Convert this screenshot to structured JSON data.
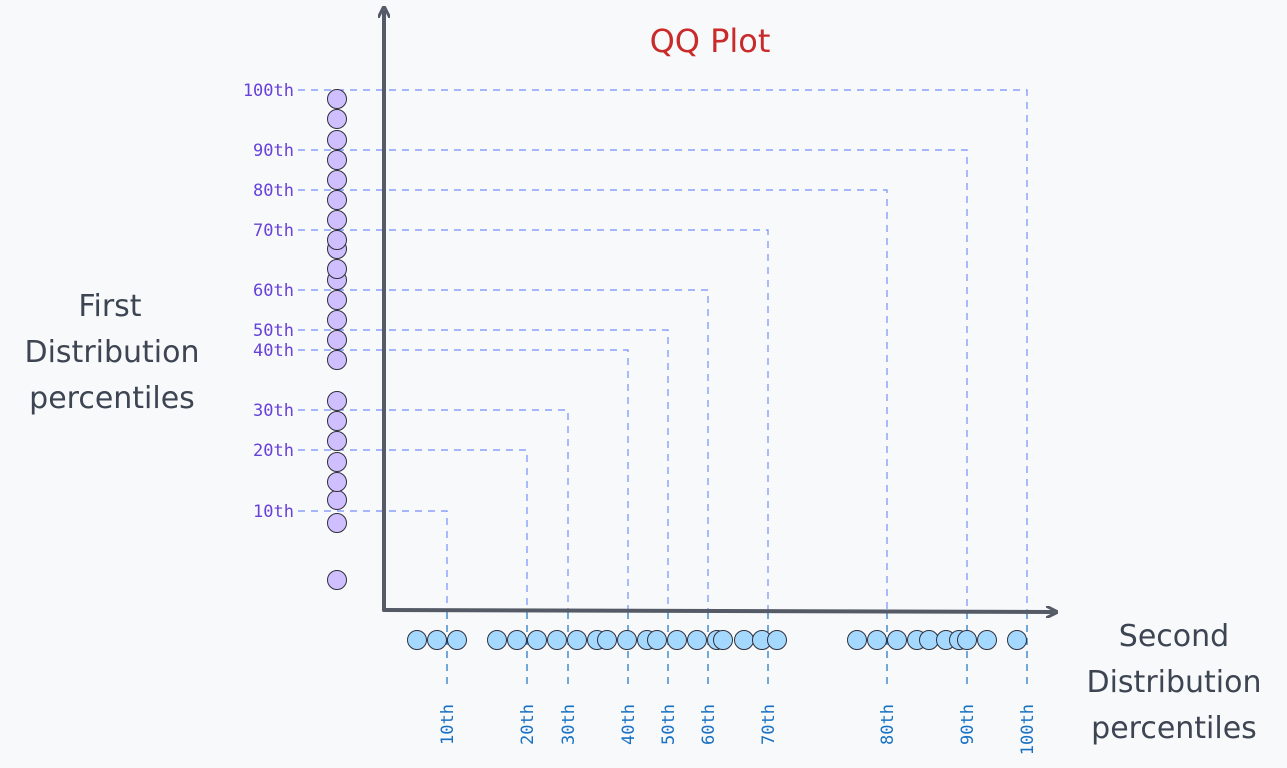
{
  "title": "QQ Plot",
  "y_axis_label_lines": [
    "First",
    "Distribution",
    "percentiles"
  ],
  "x_axis_label_lines": [
    "Second",
    "Distribution",
    "percentiles"
  ],
  "colors": {
    "title": "#c92a2a",
    "axis": "#555b66",
    "first_dist_dot": "#d0bfff",
    "second_dist_dot": "#a5d8ff",
    "y_guides": "#748ffc",
    "x_guides": "#1971c2",
    "y_tick_text": "#6741d9",
    "x_tick_text": "#1971c2"
  },
  "chart_data": {
    "type": "diagram",
    "y_percentiles": [
      {
        "label": "10th"
      },
      {
        "label": "20th"
      },
      {
        "label": "30th"
      },
      {
        "label": "40th"
      },
      {
        "label": "50th"
      },
      {
        "label": "60th"
      },
      {
        "label": "70th"
      },
      {
        "label": "80th"
      },
      {
        "label": "90th"
      },
      {
        "label": "100th"
      }
    ],
    "x_percentiles": [
      {
        "label": "10th"
      },
      {
        "label": "20th"
      },
      {
        "label": "30th"
      },
      {
        "label": "40th"
      },
      {
        "label": "50th"
      },
      {
        "label": "60th"
      },
      {
        "label": "70th"
      },
      {
        "label": "80th"
      },
      {
        "label": "90th"
      },
      {
        "label": "100th"
      }
    ]
  }
}
